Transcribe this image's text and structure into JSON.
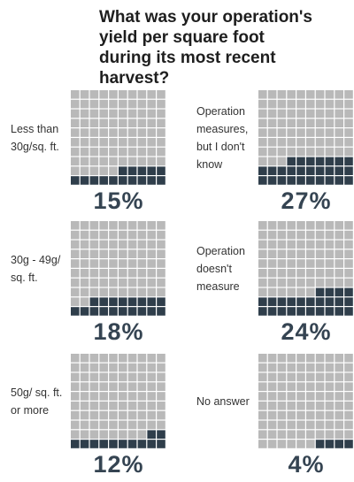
{
  "chart_data": {
    "type": "waffle",
    "title": "What was your operation's yield per square foot during its most recent harvest?",
    "categories": [
      "Less than 30g/sq. ft.",
      "Operation measures, but I don't know",
      "30g - 49g/ sq. ft.",
      "Operation doesn't measure",
      "50g/ sq. ft. or more",
      "No answer"
    ],
    "values": [
      15,
      27,
      18,
      24,
      12,
      4
    ],
    "value_labels": [
      "15%",
      "27%",
      "18%",
      "24%",
      "12%",
      "4%"
    ],
    "color": "#2f3e4b",
    "empty_color": "#b9b9b9"
  }
}
